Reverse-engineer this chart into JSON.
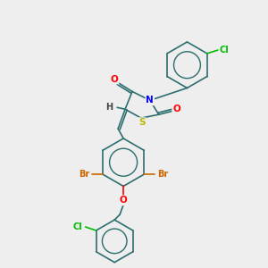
{
  "background_color": "#eeeeee",
  "bond_color": "#2d6e6e",
  "atom_colors": {
    "O": "#ff0000",
    "N": "#0000ff",
    "S": "#b8b800",
    "Cl": "#00bb00",
    "Br": "#cc6600",
    "H": "#444444",
    "C": "#2d6e6e"
  },
  "fig_width": 3.0,
  "fig_height": 3.0,
  "dpi": 100
}
